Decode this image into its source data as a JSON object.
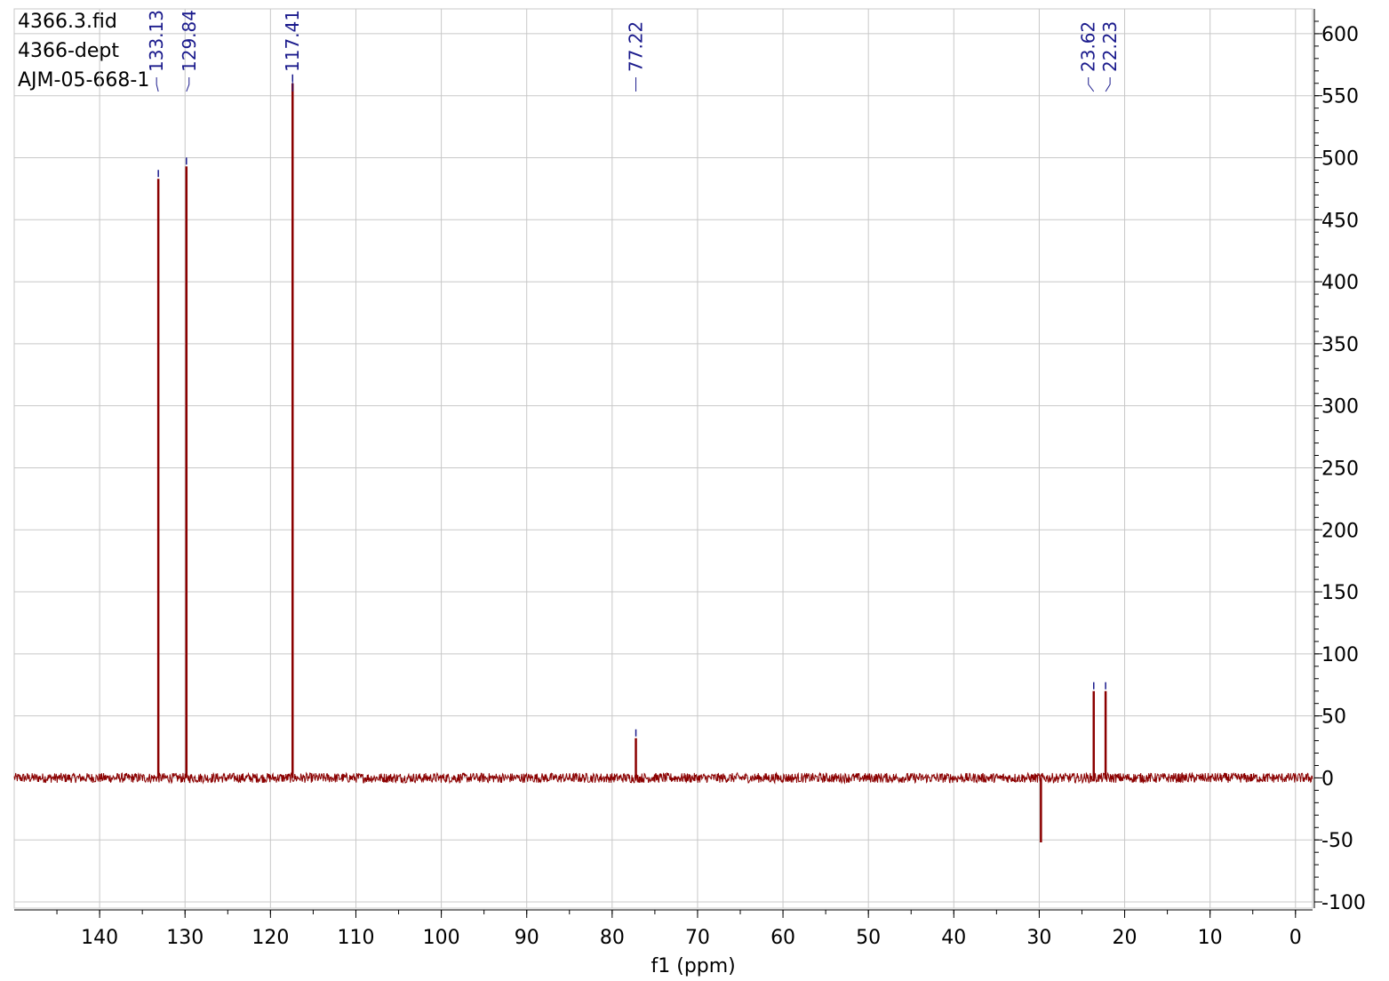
{
  "header": {
    "lines": [
      "4366.3.fid",
      "4366-dept",
      "AJM-05-668-1"
    ]
  },
  "colors": {
    "spectrum": "#8b0000",
    "peak_label": "#1a1a8c",
    "grid": "#c8c8c8",
    "axis": "#000000"
  },
  "chart_data": {
    "type": "line",
    "xlabel": "f1 (ppm)",
    "ylabel": "",
    "xlim": [
      150,
      -2
    ],
    "ylim": [
      -105,
      620
    ],
    "x_reversed": true,
    "x_ticks": [
      140,
      130,
      120,
      110,
      100,
      90,
      80,
      70,
      60,
      50,
      40,
      30,
      20,
      10,
      0
    ],
    "y_ticks": [
      600,
      550,
      500,
      450,
      400,
      350,
      300,
      250,
      200,
      150,
      100,
      50,
      0,
      -50,
      -100
    ],
    "y_axis_side": "right",
    "grid": true,
    "noise_amplitude": 4,
    "peaks": [
      {
        "ppm": 133.13,
        "intensity": 483,
        "label": "133.13"
      },
      {
        "ppm": 129.84,
        "intensity": 493,
        "label": "129.84"
      },
      {
        "ppm": 117.41,
        "intensity": 560,
        "label": "117.41"
      },
      {
        "ppm": 77.22,
        "intensity": 32,
        "label": "77.22"
      },
      {
        "ppm": 29.8,
        "intensity": -52,
        "label": ""
      },
      {
        "ppm": 23.62,
        "intensity": 70,
        "label": "23.62"
      },
      {
        "ppm": 22.23,
        "intensity": 70,
        "label": "22.23"
      }
    ]
  }
}
